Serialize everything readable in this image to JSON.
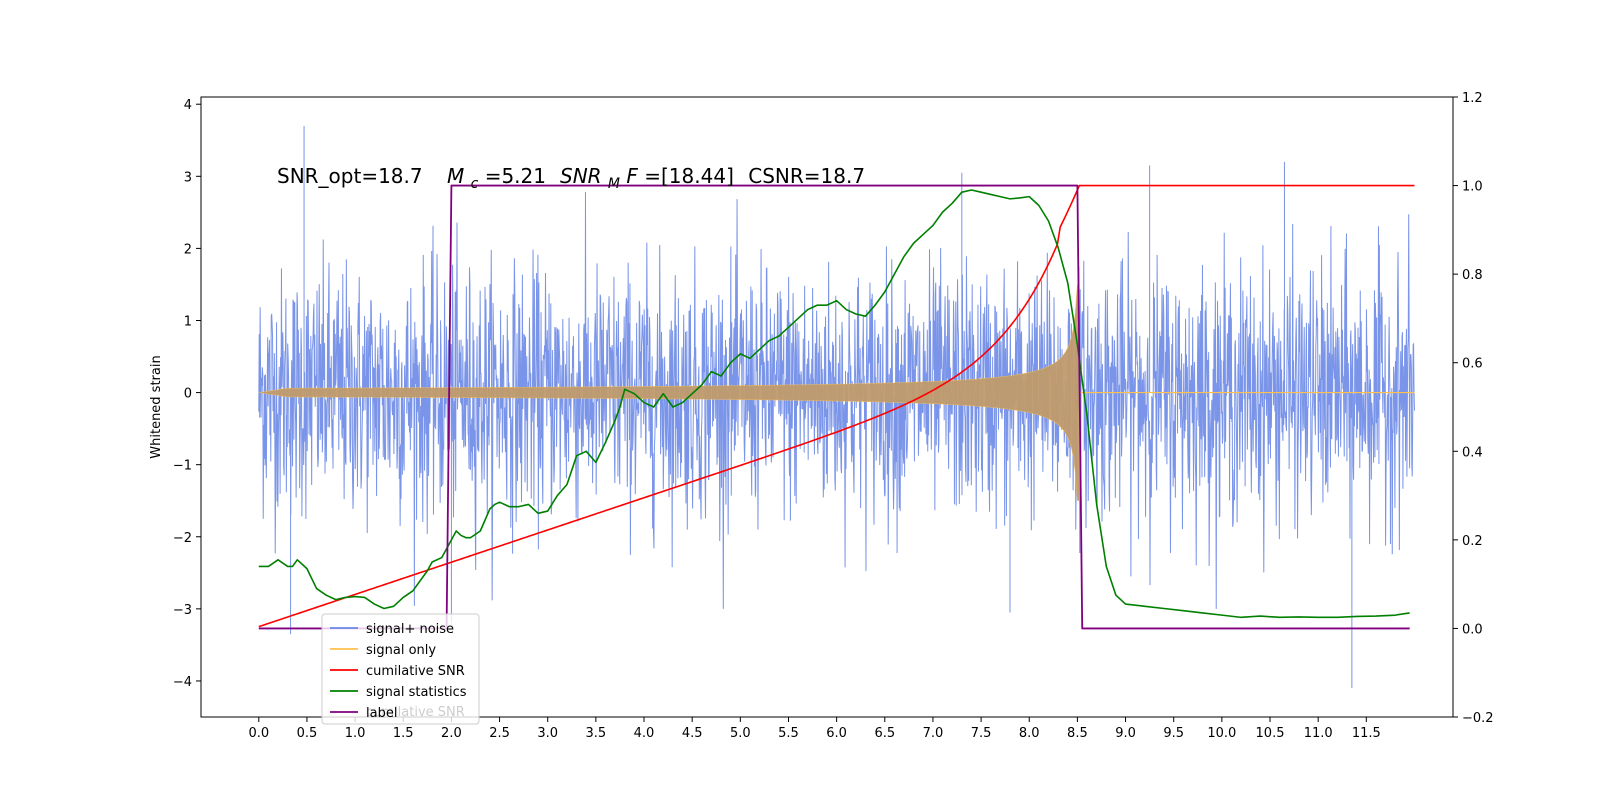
{
  "chart_data": {
    "type": "line",
    "title": "",
    "ylabel_left": "Whitened strain",
    "ylim_left": [
      -4.5,
      4.1
    ],
    "ylim_right": [
      -0.2,
      1.2
    ],
    "xlim": [
      -0.6,
      12.4
    ],
    "x_ticks": [
      "0.0",
      "0.5",
      "1.0",
      "1.5",
      "2.0",
      "2.5",
      "3.0",
      "3.5",
      "4.0",
      "4.5",
      "5.0",
      "5.5",
      "6.0",
      "6.5",
      "7.0",
      "7.5",
      "8.0",
      "8.5",
      "9.0",
      "9.5",
      "10.0",
      "10.5",
      "11.0",
      "11.5"
    ],
    "y_ticks_left": [
      "4",
      "3",
      "2",
      "1",
      "0",
      "−1",
      "−2",
      "−3",
      "−4"
    ],
    "y_ticks_right": [
      "1.2",
      "1.0",
      "0.8",
      "0.6",
      "0.4",
      "0.2",
      "0.0",
      "−0.2"
    ],
    "annotation": {
      "snr_opt": "SNR_opt=18.7",
      "mc_symbol": "M",
      "mc_sub": "c",
      "mc_value": "=5.21",
      "snrmf_symbol": "SNR",
      "snrmf_sub": "M",
      "snrmf_f": "F",
      "snrmf_value": "=[18.44]",
      "csnr": "CSNR=18.7"
    },
    "legend_location": "lower-left",
    "legend": [
      {
        "label": "signal+ noise",
        "color": "#6a88e6"
      },
      {
        "label": "signal only",
        "color": "#ffc04d"
      },
      {
        "label": "cumilative SNR",
        "color": "#ff0000"
      },
      {
        "label": "signal statistics",
        "color": "#008000"
      },
      {
        "label": "label",
        "color": "#800080"
      }
    ],
    "legend_ghost": "cumilative SNR",
    "series": [
      {
        "name": "signal+ noise",
        "axis": "left",
        "x_range": [
          0.0,
          12.0
        ],
        "noise_amplitude": 1.0,
        "spike_extremes": [
          {
            "x": 0.47,
            "y": 3.7
          },
          {
            "x": 0.33,
            "y": -3.35
          },
          {
            "x": 7.3,
            "y": 3.05
          },
          {
            "x": 9.25,
            "y": 3.15
          },
          {
            "x": 10.65,
            "y": 3.2
          },
          {
            "x": 11.35,
            "y": -4.1
          },
          {
            "x": 7.8,
            "y": -3.05
          },
          {
            "x": 2.0,
            "y": -3.2
          }
        ]
      },
      {
        "name": "signal only",
        "axis": "left",
        "x_range": [
          0.0,
          12.0
        ],
        "merger_x": 8.52,
        "peak_amplitude": 1.5
      },
      {
        "name": "cumilative SNR",
        "axis": "right",
        "x": [
          0.0,
          0.5,
          1.0,
          1.5,
          2.0,
          2.5,
          3.0,
          3.5,
          4.0,
          4.5,
          5.0,
          5.5,
          6.0,
          6.5,
          7.0,
          7.5,
          8.0,
          8.2,
          8.4,
          8.5,
          8.52,
          12.0
        ],
        "values": [
          0.004,
          0.025,
          0.05,
          0.08,
          0.115,
          0.155,
          0.195,
          0.235,
          0.275,
          0.315,
          0.36,
          0.405,
          0.455,
          0.51,
          0.575,
          0.65,
          0.76,
          0.82,
          0.9,
          0.97,
          1.0,
          1.0
        ]
      },
      {
        "name": "signal statistics",
        "axis": "right",
        "x": [
          0.0,
          0.1,
          0.2,
          0.3,
          0.35,
          0.4,
          0.5,
          0.6,
          0.7,
          0.8,
          0.9,
          1.0,
          1.1,
          1.2,
          1.3,
          1.4,
          1.5,
          1.6,
          1.7,
          1.75,
          1.8,
          1.9,
          2.0,
          2.05,
          2.1,
          2.15,
          2.2,
          2.3,
          2.4,
          2.45,
          2.5,
          2.6,
          2.7,
          2.8,
          2.9,
          3.0,
          3.1,
          3.2,
          3.3,
          3.4,
          3.5,
          3.6,
          3.7,
          3.75,
          3.8,
          3.9,
          4.0,
          4.1,
          4.2,
          4.3,
          4.4,
          4.5,
          4.6,
          4.7,
          4.8,
          4.9,
          5.0,
          5.1,
          5.2,
          5.3,
          5.4,
          5.5,
          5.6,
          5.7,
          5.8,
          5.9,
          6.0,
          6.1,
          6.2,
          6.3,
          6.4,
          6.5,
          6.6,
          6.7,
          6.8,
          6.9,
          7.0,
          7.1,
          7.2,
          7.3,
          7.4,
          7.5,
          7.6,
          7.7,
          7.8,
          7.9,
          8.0,
          8.1,
          8.2,
          8.3,
          8.4,
          8.5,
          8.6,
          8.7,
          8.8,
          8.9,
          9.0,
          9.2,
          9.4,
          9.6,
          9.8,
          10.0,
          10.2,
          10.4,
          10.6,
          10.8,
          11.0,
          11.2,
          11.4,
          11.6,
          11.8,
          11.95
        ],
        "values": [
          0.14,
          0.14,
          0.155,
          0.14,
          0.14,
          0.155,
          0.135,
          0.09,
          0.075,
          0.065,
          0.07,
          0.072,
          0.07,
          0.055,
          0.045,
          0.05,
          0.07,
          0.085,
          0.115,
          0.13,
          0.15,
          0.16,
          0.2,
          0.22,
          0.21,
          0.205,
          0.205,
          0.22,
          0.27,
          0.28,
          0.285,
          0.275,
          0.275,
          0.28,
          0.26,
          0.265,
          0.3,
          0.325,
          0.39,
          0.4,
          0.375,
          0.42,
          0.47,
          0.5,
          0.54,
          0.53,
          0.51,
          0.5,
          0.53,
          0.5,
          0.51,
          0.53,
          0.55,
          0.58,
          0.57,
          0.6,
          0.62,
          0.61,
          0.63,
          0.65,
          0.66,
          0.68,
          0.7,
          0.72,
          0.73,
          0.73,
          0.74,
          0.72,
          0.71,
          0.705,
          0.73,
          0.76,
          0.8,
          0.84,
          0.87,
          0.89,
          0.91,
          0.94,
          0.96,
          0.985,
          0.99,
          0.985,
          0.98,
          0.975,
          0.97,
          0.972,
          0.975,
          0.955,
          0.92,
          0.86,
          0.78,
          0.64,
          0.48,
          0.28,
          0.14,
          0.075,
          0.055,
          0.05,
          0.045,
          0.04,
          0.035,
          0.03,
          0.025,
          0.028,
          0.025,
          0.026,
          0.025,
          0.025,
          0.027,
          0.028,
          0.03,
          0.035
        ]
      },
      {
        "name": "label",
        "axis": "right",
        "x": [
          0.0,
          1.95,
          2.0,
          8.5,
          8.55,
          11.95
        ],
        "values": [
          0.0,
          0.0,
          1.0,
          1.0,
          0.0,
          0.0
        ]
      }
    ]
  }
}
